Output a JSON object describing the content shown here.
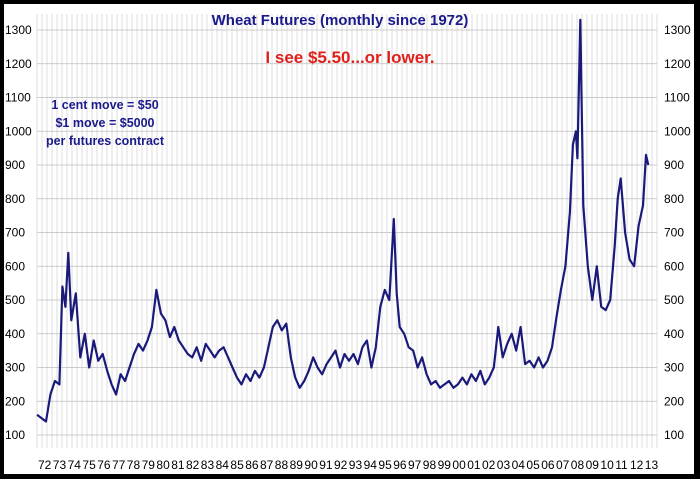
{
  "chart_data": {
    "type": "line",
    "title": "Wheat Futures (monthly since 1972)",
    "subtitle": "I see $5.50...or lower.",
    "annotations": [
      "1 cent move = $50",
      "$1 move = $5000",
      "per futures contract"
    ],
    "y_ticks": [
      "1300",
      "1200",
      "1100",
      "1000",
      "900",
      "800",
      "700",
      "600",
      "500",
      "400",
      "300",
      "200",
      "100"
    ],
    "ylim": [
      100,
      1300
    ],
    "x_ticks": [
      "72",
      "73",
      "74",
      "75",
      "76",
      "77",
      "78",
      "79",
      "80",
      "81",
      "82",
      "83",
      "84",
      "85",
      "86",
      "87",
      "88",
      "89",
      "90",
      "91",
      "92",
      "93",
      "94",
      "95",
      "96",
      "97",
      "98",
      "99",
      "00",
      "01",
      "02",
      "03",
      "04",
      "05",
      "06",
      "07",
      "08",
      "09",
      "10",
      "11",
      "12",
      "13"
    ],
    "grid": true,
    "colors": {
      "line": "#1a1a7a",
      "title": "#1a1a8c",
      "subtitle": "#e0201a"
    },
    "series": [
      {
        "x": [
          1972.0,
          1972.3,
          1972.6,
          1972.9,
          1973.2,
          1973.5,
          1973.7,
          1973.9,
          1974.1,
          1974.3,
          1974.6,
          1974.9,
          1975.2,
          1975.5,
          1975.8,
          1976.1,
          1976.4,
          1976.7,
          1977.0,
          1977.3,
          1977.6,
          1977.9,
          1978.2,
          1978.5,
          1978.8,
          1979.1,
          1979.4,
          1979.7,
          1980.0,
          1980.3,
          1980.6,
          1980.9,
          1981.2,
          1981.5,
          1981.8,
          1982.1,
          1982.4,
          1982.7,
          1983.0,
          1983.3,
          1983.6,
          1983.9,
          1984.2,
          1984.5,
          1984.8,
          1985.1,
          1985.4,
          1985.7,
          1986.0,
          1986.3,
          1986.6,
          1986.9,
          1987.2,
          1987.5,
          1987.8,
          1988.1,
          1988.4,
          1988.7,
          1989.0,
          1989.3,
          1989.6,
          1989.9,
          1990.2,
          1990.5,
          1990.8,
          1991.1,
          1991.4,
          1991.7,
          1992.0,
          1992.3,
          1992.6,
          1992.9,
          1993.2,
          1993.5,
          1993.8,
          1994.1,
          1994.4,
          1994.7,
          1995.0,
          1995.3,
          1995.6,
          1995.9,
          1996.1,
          1996.3,
          1996.6,
          1996.9,
          1997.2,
          1997.5,
          1997.8,
          1998.1,
          1998.4,
          1998.7,
          1999.0,
          1999.3,
          1999.6,
          1999.9,
          2000.2,
          2000.5,
          2000.8,
          2001.1,
          2001.4,
          2001.7,
          2002.0,
          2002.3,
          2002.6,
          2002.9,
          2003.2,
          2003.5,
          2003.8,
          2004.1,
          2004.4,
          2004.7,
          2005.0,
          2005.3,
          2005.6,
          2005.9,
          2006.2,
          2006.5,
          2006.8,
          2007.1,
          2007.4,
          2007.7,
          2007.9,
          2008.1,
          2008.2,
          2008.4,
          2008.6,
          2008.9,
          2009.2,
          2009.5,
          2009.8,
          2010.1,
          2010.4,
          2010.7,
          2010.9,
          2011.1,
          2011.4,
          2011.7,
          2012.0,
          2012.3,
          2012.6,
          2012.8,
          2012.95
        ],
        "y": [
          160,
          150,
          140,
          220,
          260,
          250,
          540,
          480,
          640,
          440,
          520,
          330,
          400,
          300,
          380,
          320,
          340,
          290,
          250,
          220,
          280,
          260,
          300,
          340,
          370,
          350,
          380,
          420,
          530,
          460,
          440,
          390,
          420,
          380,
          360,
          340,
          330,
          360,
          320,
          370,
          350,
          330,
          350,
          360,
          330,
          300,
          270,
          250,
          280,
          260,
          290,
          270,
          300,
          360,
          420,
          440,
          410,
          430,
          330,
          270,
          240,
          260,
          290,
          330,
          300,
          280,
          310,
          330,
          350,
          300,
          340,
          320,
          340,
          310,
          360,
          380,
          300,
          360,
          480,
          530,
          500,
          740,
          520,
          420,
          400,
          360,
          350,
          300,
          330,
          280,
          250,
          260,
          240,
          250,
          260,
          240,
          250,
          270,
          250,
          280,
          260,
          290,
          250,
          270,
          300,
          420,
          330,
          370,
          400,
          350,
          420,
          310,
          320,
          300,
          330,
          300,
          320,
          360,
          450,
          530,
          600,
          760,
          960,
          1000,
          920,
          1330,
          780,
          600,
          500,
          600,
          480,
          470,
          500,
          660,
          800,
          860,
          700,
          620,
          600,
          720,
          780,
          930,
          900
        ]
      }
    ]
  }
}
